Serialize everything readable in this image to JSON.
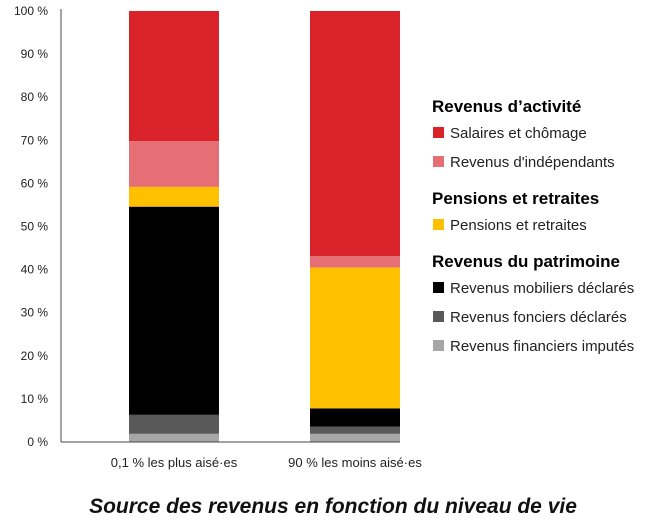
{
  "chart_data": {
    "type": "bar",
    "stacked": true,
    "title": "Source des revenus en fonction du niveau de vie",
    "categories": [
      "0,1 % les plus aisé·es",
      "90 % les moins aisé·es"
    ],
    "ylim": [
      0,
      100
    ],
    "yticks": [
      "0 %",
      "10 %",
      "20 %",
      "30 %",
      "40 %",
      "50 %",
      "60 %",
      "70 %",
      "80 %",
      "90 %",
      "100 %"
    ],
    "series": [
      {
        "name": "Revenus financiers imputés",
        "color": "#a6a6a6",
        "values": [
          1.9,
          1.9
        ]
      },
      {
        "name": "Revenus fonciers déclarés",
        "color": "#595959",
        "values": [
          4.4,
          1.7
        ]
      },
      {
        "name": "Revenus mobiliers déclarés",
        "color": "#000000",
        "values": [
          48.3,
          4.2
        ]
      },
      {
        "name": "Pensions et retraites",
        "color": "#ffc000",
        "values": [
          4.6,
          32.7
        ]
      },
      {
        "name": "Revenus d'indépendants",
        "color": "#e66e75",
        "values": [
          10.6,
          2.6
        ]
      },
      {
        "name": "Salaires et chômage",
        "color": "#da222b",
        "values": [
          30.2,
          56.9
        ]
      }
    ],
    "legend": {
      "position": "right",
      "groups": [
        {
          "title": "Revenus d’activité",
          "items": [
            5,
            4
          ]
        },
        {
          "title": "Pensions et retraites",
          "items": [
            3
          ]
        },
        {
          "title": "Revenus du patrimoine",
          "items": [
            2,
            1,
            0
          ]
        }
      ]
    }
  }
}
